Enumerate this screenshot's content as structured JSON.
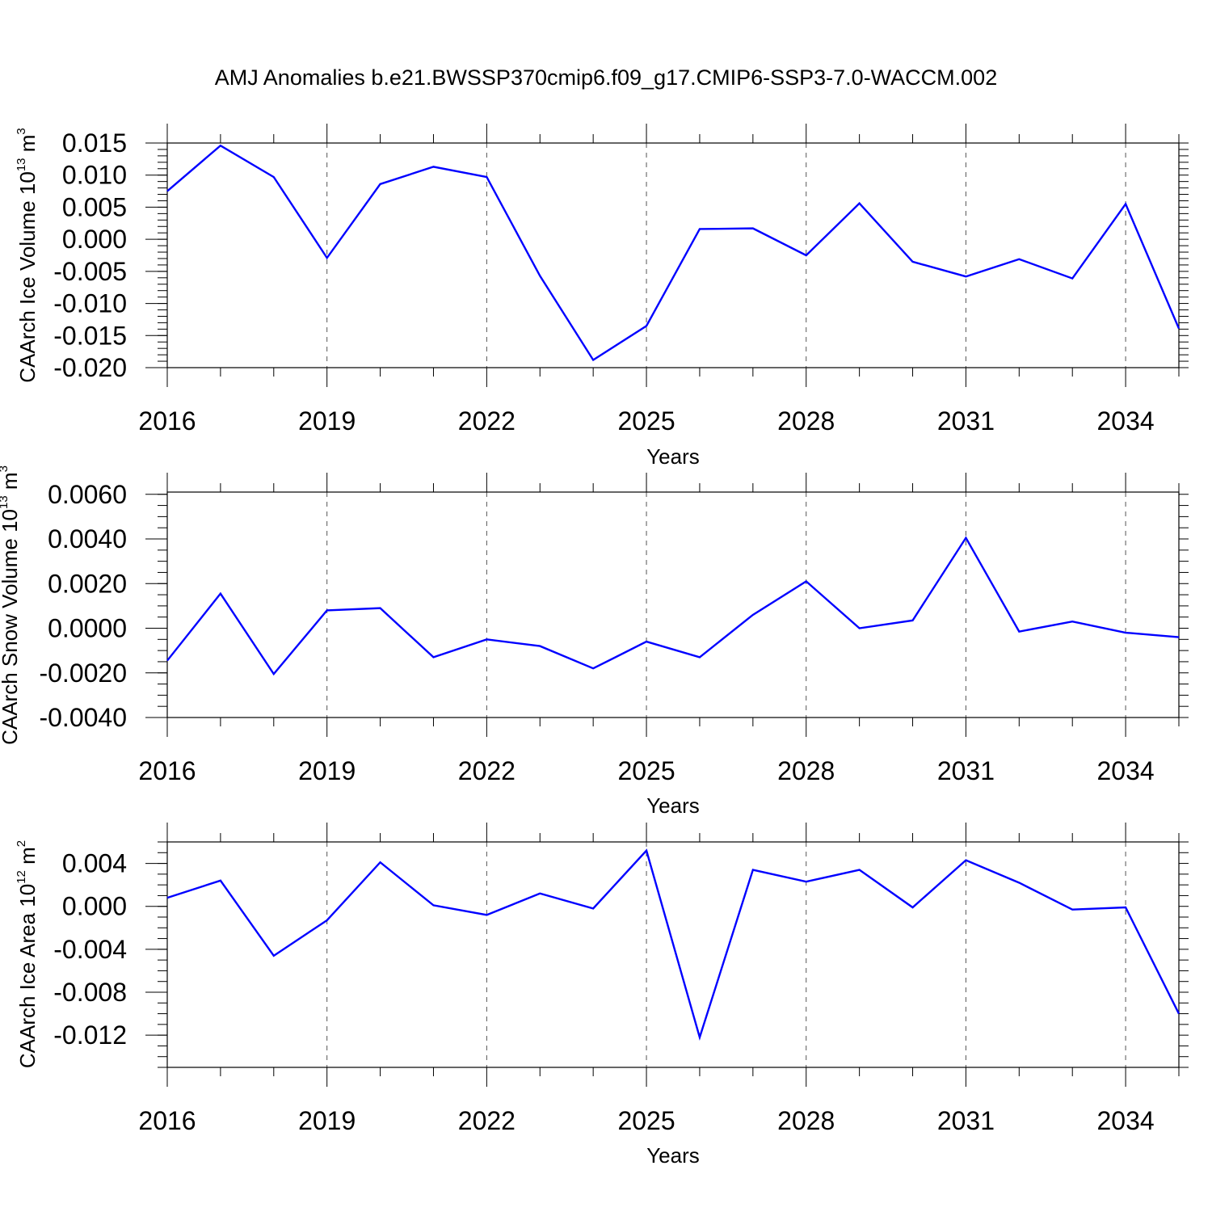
{
  "figure": {
    "title": "AMJ Anomalies b.e21.BWSSP370cmip6.f09_g17.CMIP6-SSP3-7.0-WACCM.002"
  },
  "colors": {
    "series": "#0000ff",
    "axis": "#000000",
    "grid": "#555555"
  },
  "chart_data": [
    {
      "type": "line",
      "xlabel": "Years",
      "ylabel": "CAArch Ice Volume 10",
      "ylabel_exp": "13",
      "ylabel_unit": " m",
      "ylabel_unit_exp": "3",
      "xlim": [
        2016,
        2035
      ],
      "ylim": [
        -0.02,
        0.015
      ],
      "x_ticks": [
        2016,
        2019,
        2022,
        2025,
        2028,
        2031,
        2034
      ],
      "x_tick_labels": [
        "2016",
        "2019",
        "2022",
        "2025",
        "2028",
        "2031",
        "2034"
      ],
      "x_minor": [
        2017,
        2018,
        2020,
        2021,
        2023,
        2024,
        2026,
        2027,
        2029,
        2030,
        2032,
        2033,
        2035
      ],
      "y_ticks": [
        -0.02,
        -0.015,
        -0.01,
        -0.005,
        0.0,
        0.005,
        0.01,
        0.015
      ],
      "y_tick_labels": [
        "-0.020",
        "-0.015",
        "-0.010",
        "-0.005",
        "0.000",
        "0.005",
        "0.010",
        "0.015"
      ],
      "y_minor_step": 0.001,
      "grid_x": [
        2019,
        2022,
        2025,
        2028,
        2031,
        2034
      ],
      "series": [
        {
          "x": [
            2016,
            2017,
            2018,
            2019,
            2020,
            2021,
            2022,
            2023,
            2024,
            2025,
            2026,
            2027,
            2028,
            2029,
            2030,
            2031,
            2032,
            2033,
            2034,
            2035
          ],
          "values": [
            0.0075,
            0.0146,
            0.0097,
            -0.0029,
            0.0086,
            0.0113,
            0.0097,
            -0.0057,
            -0.0188,
            -0.0135,
            0.0016,
            0.0017,
            -0.0025,
            0.0056,
            -0.0035,
            -0.0058,
            -0.0031,
            -0.0061,
            0.0055,
            -0.0139
          ]
        }
      ]
    },
    {
      "type": "line",
      "xlabel": "Years",
      "ylabel": "CAArch Snow Volume 10",
      "ylabel_exp": "13",
      "ylabel_unit": " m",
      "ylabel_unit_exp": "3",
      "xlim": [
        2016,
        2035
      ],
      "ylim": [
        -0.004,
        0.0061
      ],
      "x_ticks": [
        2016,
        2019,
        2022,
        2025,
        2028,
        2031,
        2034
      ],
      "x_tick_labels": [
        "2016",
        "2019",
        "2022",
        "2025",
        "2028",
        "2031",
        "2034"
      ],
      "x_minor": [
        2017,
        2018,
        2020,
        2021,
        2023,
        2024,
        2026,
        2027,
        2029,
        2030,
        2032,
        2033,
        2035
      ],
      "y_ticks": [
        -0.004,
        -0.002,
        0.0,
        0.002,
        0.004,
        0.006
      ],
      "y_tick_labels": [
        "-0.0040",
        "-0.0020",
        "0.0000",
        "0.0020",
        "0.0040",
        "0.0060"
      ],
      "y_minor_step": 0.0005,
      "grid_x": [
        2019,
        2022,
        2025,
        2028,
        2031,
        2034
      ],
      "series": [
        {
          "x": [
            2016,
            2017,
            2018,
            2019,
            2020,
            2021,
            2022,
            2023,
            2024,
            2025,
            2026,
            2027,
            2028,
            2029,
            2030,
            2031,
            2032,
            2033,
            2034,
            2035
          ],
          "values": [
            -0.00145,
            0.00155,
            -0.00205,
            0.0008,
            0.0009,
            -0.0013,
            -0.0005,
            -0.0008,
            -0.0018,
            -0.0006,
            -0.0013,
            0.0006,
            0.0021,
            0.0,
            0.00035,
            0.00405,
            -0.00015,
            0.0003,
            -0.0002,
            -0.0004
          ]
        }
      ]
    },
    {
      "type": "line",
      "xlabel": "Years",
      "ylabel": "CAArch Ice Area 10",
      "ylabel_exp": "12",
      "ylabel_unit": " m",
      "ylabel_unit_exp": "2",
      "xlim": [
        2016,
        2035
      ],
      "ylim": [
        -0.015,
        0.006
      ],
      "x_ticks": [
        2016,
        2019,
        2022,
        2025,
        2028,
        2031,
        2034
      ],
      "x_tick_labels": [
        "2016",
        "2019",
        "2022",
        "2025",
        "2028",
        "2031",
        "2034"
      ],
      "x_minor": [
        2017,
        2018,
        2020,
        2021,
        2023,
        2024,
        2026,
        2027,
        2029,
        2030,
        2032,
        2033,
        2035
      ],
      "y_ticks": [
        -0.012,
        -0.008,
        -0.004,
        0.0,
        0.004
      ],
      "y_tick_labels": [
        "-0.012",
        "-0.008",
        "-0.004",
        "0.000",
        "0.004"
      ],
      "y_minor_step": 0.001,
      "grid_x": [
        2019,
        2022,
        2025,
        2028,
        2031,
        2034
      ],
      "series": [
        {
          "x": [
            2016,
            2017,
            2018,
            2019,
            2020,
            2021,
            2022,
            2023,
            2024,
            2025,
            2026,
            2027,
            2028,
            2029,
            2030,
            2031,
            2032,
            2033,
            2034,
            2035
          ],
          "values": [
            0.0008,
            0.0024,
            -0.0046,
            -0.0013,
            0.0041,
            0.0001,
            -0.0008,
            0.0012,
            -0.0002,
            0.0052,
            -0.0122,
            0.0034,
            0.0023,
            0.0034,
            -0.0001,
            0.0043,
            0.0022,
            -0.0003,
            -0.0001,
            -0.01
          ]
        }
      ]
    }
  ]
}
